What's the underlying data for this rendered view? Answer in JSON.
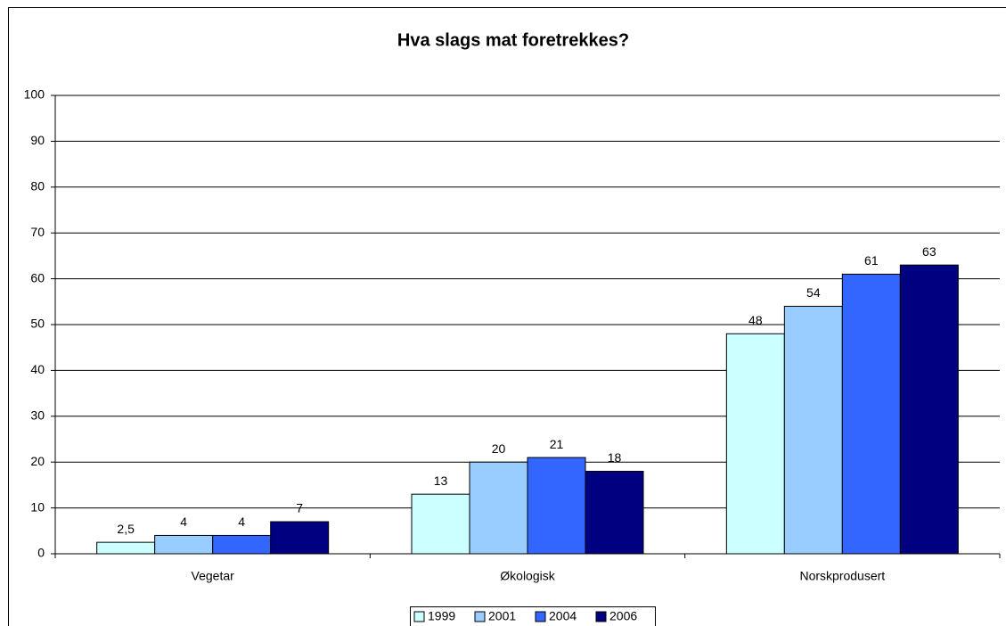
{
  "chart_data": {
    "type": "bar",
    "title": "Hva slags mat foretrekkes?",
    "categories": [
      "Vegetar",
      "Økologisk",
      "Norskprodusert"
    ],
    "series": [
      {
        "name": "1999",
        "color": "#ccffff",
        "values": [
          2.5,
          13,
          48
        ],
        "value_labels": [
          "2,5",
          "13",
          "48"
        ]
      },
      {
        "name": "2001",
        "color": "#99ccff",
        "values": [
          4,
          20,
          54
        ]
      },
      {
        "name": "2004",
        "color": "#3366ff",
        "values": [
          4,
          21,
          61
        ]
      },
      {
        "name": "2006",
        "color": "#000080",
        "values": [
          7,
          18,
          63
        ]
      }
    ],
    "ylim": [
      0,
      100
    ],
    "yticks": [
      0,
      10,
      20,
      30,
      40,
      50,
      60,
      70,
      80,
      90,
      100
    ],
    "grid": true,
    "legend": "bottom"
  }
}
